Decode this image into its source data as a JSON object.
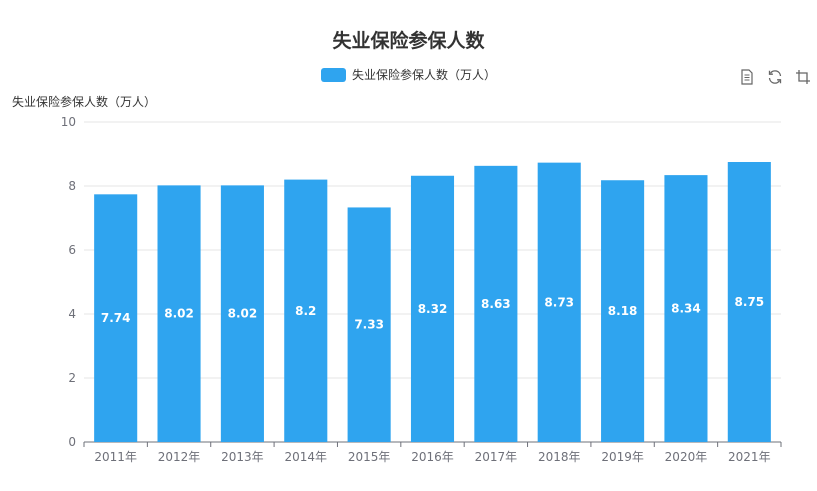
{
  "chart_data": {
    "type": "bar",
    "title": "失业保险参保人数",
    "ylabel": "失业保险参保人数（万人）",
    "xlabel": "",
    "categories": [
      "2011年",
      "2012年",
      "2013年",
      "2014年",
      "2015年",
      "2016年",
      "2017年",
      "2018年",
      "2019年",
      "2020年",
      "2021年"
    ],
    "series": [
      {
        "name": "失业保险参保人数（万人）",
        "values": [
          7.74,
          8.02,
          8.02,
          8.2,
          7.33,
          8.32,
          8.63,
          8.73,
          8.18,
          8.34,
          8.75
        ],
        "labels": [
          "7.74",
          "8.02",
          "8.02",
          "8.2",
          "7.33",
          "8.32",
          "8.63",
          "8.73",
          "8.18",
          "8.34",
          "8.75"
        ]
      }
    ],
    "ylim": [
      0,
      10
    ],
    "yticks": [
      0,
      2,
      4,
      6,
      8,
      10
    ],
    "grid": true,
    "legend_position": "top-center",
    "colors": {
      "bar": "#2fa4ef",
      "grid": "#e6e6e6",
      "axis": "#6e7079",
      "label": "#ffffff"
    }
  },
  "toolbox": {
    "icons": [
      "data-view-icon",
      "restore-icon",
      "crop-icon"
    ]
  }
}
